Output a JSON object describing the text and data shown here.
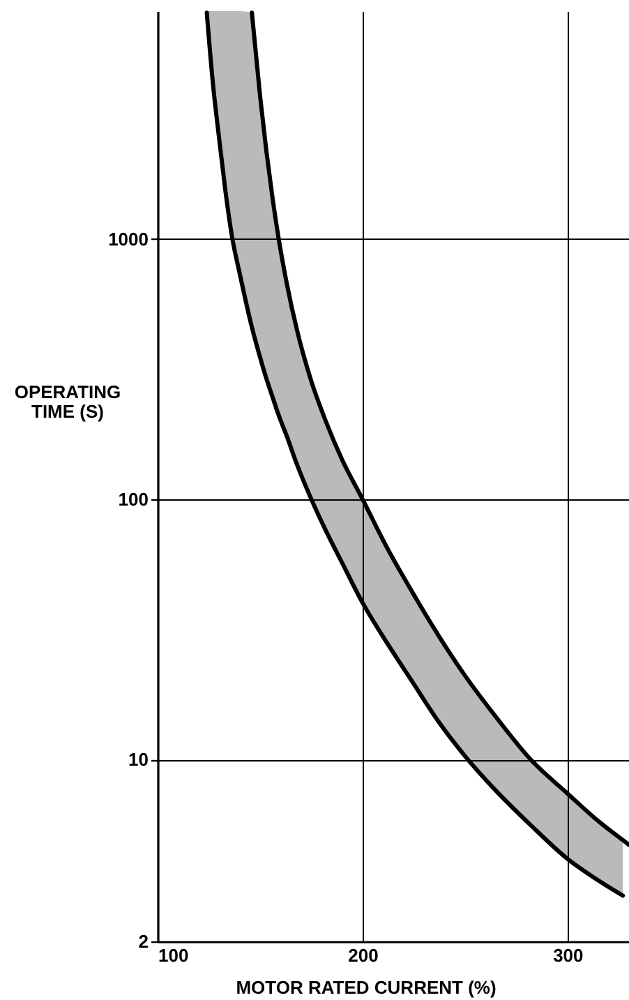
{
  "chart_data": {
    "type": "line",
    "xlabel": "MOTOR RATED CURRENT (%)",
    "ylabel": "OPERATING\nTIME (S)",
    "x": [
      124,
      127,
      130,
      133,
      136.5,
      140,
      146,
      150,
      153,
      156,
      159,
      163,
      168,
      175,
      182,
      190,
      200,
      212,
      225,
      237,
      250,
      265,
      282,
      300,
      315,
      327,
      330
    ],
    "series": [
      {
        "color": "#000000",
        "values": [
          7400,
          3950,
          2440,
          1550,
          1000,
          740,
          458,
          351,
          292,
          248,
          211,
          175,
          136,
          100,
          76,
          57,
          40,
          28,
          19.5,
          14,
          10.3,
          7.6,
          5.6,
          4.15,
          3.43,
          3.0,
          null
        ],
        "lower": [
          7400,
          3950,
          2440,
          1550,
          1000,
          740,
          458,
          351,
          292,
          248,
          211,
          175,
          136,
          100,
          76,
          57,
          40,
          28,
          19.5,
          14,
          10.3,
          7.6,
          5.6,
          4.15,
          3.43,
          3.0,
          null
        ],
        "upper": [
          7500,
          7500,
          7500,
          7500,
          7500,
          7500,
          7400,
          3540,
          2200,
          1450,
          1010,
          676,
          447,
          284,
          200,
          142,
          100,
          65,
          43,
          30,
          21,
          14.6,
          10,
          7.4,
          5.8,
          4.9,
          null
        ]
      },
      {
        "color": "#000000",
        "values": [
          null,
          null,
          null,
          null,
          null,
          null,
          7400,
          3540,
          2200,
          1450,
          1010,
          676,
          447,
          284,
          200,
          142,
          100,
          65,
          43,
          30,
          21,
          14.6,
          10,
          7.4,
          5.8,
          4.9,
          4.7
        ]
      }
    ],
    "xlim": [
      100,
      330
    ],
    "ylim": [
      2,
      7500
    ],
    "xticks": [
      100,
      200,
      300
    ],
    "yticks": [
      2,
      10,
      100,
      1000
    ],
    "log": "y",
    "grid": true,
    "line_style": "solid"
  }
}
